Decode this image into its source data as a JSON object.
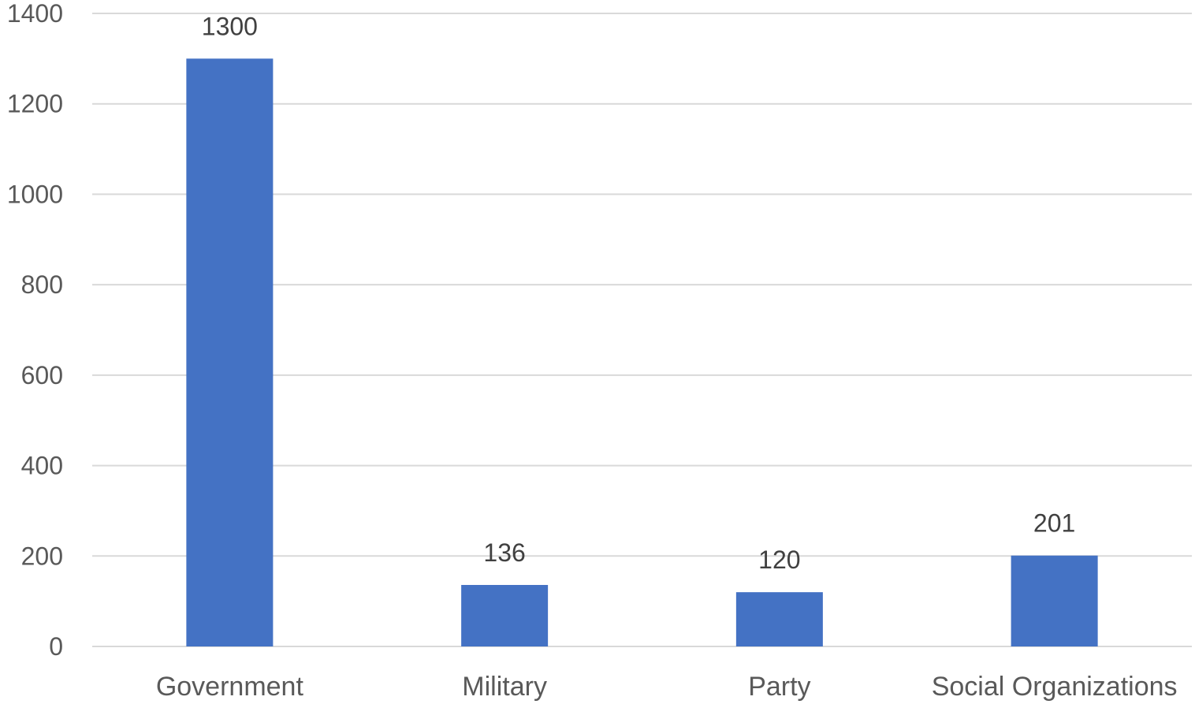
{
  "chart_data": {
    "type": "bar",
    "categories": [
      "Government",
      "Military",
      "Party",
      "Social Organizations"
    ],
    "values": [
      1300,
      136,
      120,
      201
    ],
    "data_labels": [
      "1300",
      "136",
      "120",
      "201"
    ],
    "title": "",
    "xlabel": "",
    "ylabel": "",
    "ylim": [
      0,
      1400
    ],
    "yticks": [
      0,
      200,
      400,
      600,
      800,
      1000,
      1200,
      1400
    ],
    "ytick_labels": [
      "0",
      "200",
      "400",
      "600",
      "800",
      "1000",
      "1200",
      "1400"
    ],
    "grid": true,
    "legend": "none",
    "bar_color": "#4472c4"
  }
}
